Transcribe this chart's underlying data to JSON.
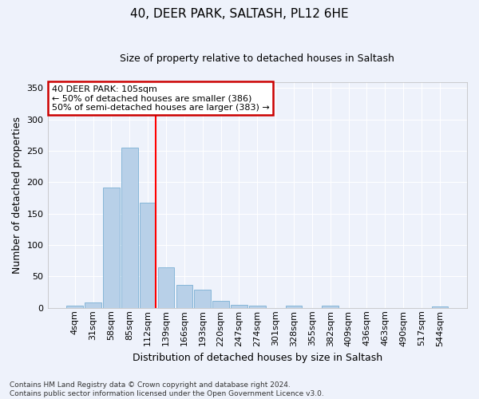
{
  "title": "40, DEER PARK, SALTASH, PL12 6HE",
  "subtitle": "Size of property relative to detached houses in Saltash",
  "xlabel": "Distribution of detached houses by size in Saltash",
  "ylabel": "Number of detached properties",
  "footnote": "Contains HM Land Registry data © Crown copyright and database right 2024.\nContains public sector information licensed under the Open Government Licence v3.0.",
  "bar_labels": [
    "4sqm",
    "31sqm",
    "58sqm",
    "85sqm",
    "112sqm",
    "139sqm",
    "166sqm",
    "193sqm",
    "220sqm",
    "247sqm",
    "274sqm",
    "301sqm",
    "328sqm",
    "355sqm",
    "382sqm",
    "409sqm",
    "436sqm",
    "463sqm",
    "490sqm",
    "517sqm",
    "544sqm"
  ],
  "bar_values": [
    3,
    9,
    191,
    255,
    167,
    65,
    37,
    29,
    11,
    5,
    4,
    0,
    4,
    0,
    3,
    0,
    0,
    0,
    0,
    0,
    2
  ],
  "bar_color": "#b8d0e8",
  "bar_edge_color": "#7aafd4",
  "background_color": "#eef2fb",
  "grid_color": "#ffffff",
  "red_line_index": 4,
  "annotation_text": "40 DEER PARK: 105sqm\n← 50% of detached houses are smaller (386)\n50% of semi-detached houses are larger (383) →",
  "annotation_box_color": "#ffffff",
  "annotation_box_edge": "#cc0000",
  "ylim": [
    0,
    360
  ],
  "yticks": [
    0,
    50,
    100,
    150,
    200,
    250,
    300,
    350
  ],
  "title_fontsize": 11,
  "subtitle_fontsize": 9,
  "ylabel_fontsize": 9,
  "xlabel_fontsize": 9,
  "tick_fontsize": 8,
  "annot_fontsize": 8,
  "footnote_fontsize": 6.5
}
